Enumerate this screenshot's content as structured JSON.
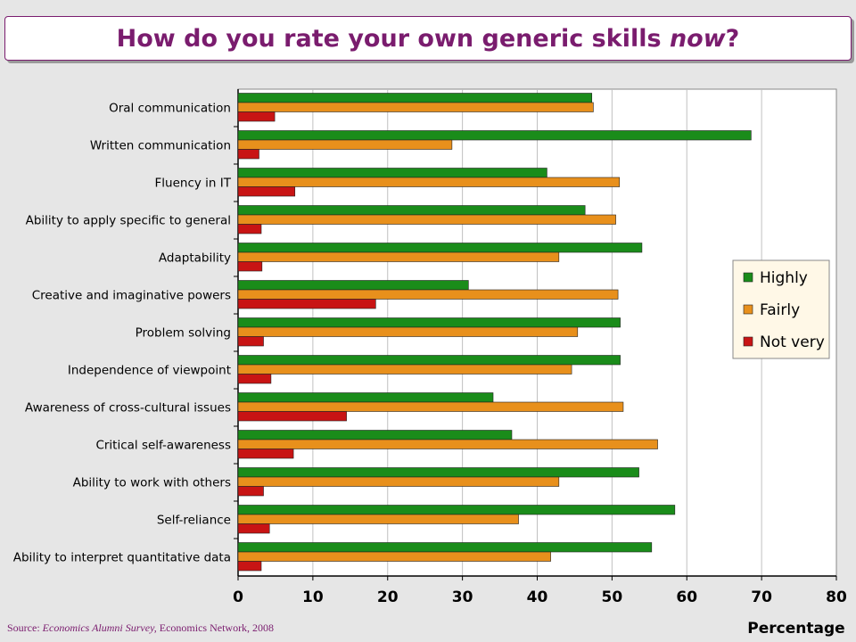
{
  "slide": {
    "title_main": "How do you rate your own generic skills ",
    "title_italic": "now",
    "title_end": "?",
    "source_prefix": "Source: ",
    "source_italic": "Economics Alumni Survey,",
    "source_rest": " Economics Network, 2008"
  },
  "colors": {
    "highly": "#1a8c1a",
    "fairly": "#e8901c",
    "not_very": "#c81414",
    "title": "#7a1c6e"
  },
  "chart_data": {
    "type": "bar",
    "orientation": "horizontal",
    "title": "How do you rate your own generic skills now?",
    "xlabel": "Percentage",
    "ylabel": "",
    "xlim": [
      0,
      80
    ],
    "xticks": [
      "0",
      "10",
      "20",
      "30",
      "40",
      "50",
      "60",
      "70",
      "80"
    ],
    "grid": "vertical",
    "legend_position": "right",
    "categories": [
      "Oral communication",
      "Written communication",
      "Fluency in IT",
      "Ability to apply specific to general",
      "Adaptability",
      "Creative and imaginative powers",
      "Problem solving",
      "Independence of viewpoint",
      "Awareness of cross-cultural issues",
      "Critical self-awareness",
      "Ability to work with others",
      "Self-reliance",
      "Ability to interpret quantitative data"
    ],
    "series": [
      {
        "name": "Highly",
        "values": [
          47.3,
          68.6,
          41.3,
          46.4,
          54.0,
          30.8,
          51.1,
          51.1,
          34.1,
          36.6,
          53.6,
          58.4,
          55.3
        ]
      },
      {
        "name": "Fairly",
        "values": [
          47.5,
          28.6,
          51.0,
          50.5,
          42.9,
          50.8,
          45.4,
          44.6,
          51.5,
          56.1,
          42.9,
          37.5,
          41.8
        ]
      },
      {
        "name": "Not very",
        "values": [
          4.9,
          2.8,
          7.6,
          3.1,
          3.2,
          18.4,
          3.4,
          4.4,
          14.5,
          7.4,
          3.4,
          4.2,
          3.1
        ]
      }
    ]
  }
}
